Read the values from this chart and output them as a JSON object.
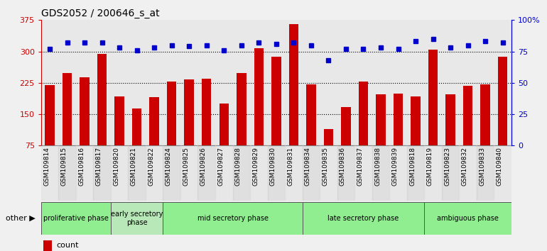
{
  "title": "GDS2052 / 200646_s_at",
  "samples": [
    "GSM109814",
    "GSM109815",
    "GSM109816",
    "GSM109817",
    "GSM109820",
    "GSM109821",
    "GSM109822",
    "GSM109824",
    "GSM109825",
    "GSM109826",
    "GSM109827",
    "GSM109828",
    "GSM109829",
    "GSM109830",
    "GSM109831",
    "GSM109834",
    "GSM109835",
    "GSM109836",
    "GSM109837",
    "GSM109838",
    "GSM109839",
    "GSM109818",
    "GSM109819",
    "GSM109823",
    "GSM109832",
    "GSM109833",
    "GSM109840"
  ],
  "counts": [
    220,
    248,
    238,
    295,
    193,
    163,
    191,
    228,
    233,
    235,
    176,
    248,
    307,
    287,
    365,
    222,
    115,
    167,
    228,
    197,
    199,
    193,
    305,
    197,
    218,
    222,
    287
  ],
  "percentile": [
    77,
    82,
    82,
    82,
    78,
    76,
    78,
    80,
    79,
    80,
    76,
    80,
    82,
    81,
    82,
    80,
    68,
    77,
    77,
    78,
    77,
    83,
    85,
    78,
    80,
    83,
    82
  ],
  "phases": [
    {
      "label": "proliferative phase",
      "color": "#90EE90",
      "start": 0,
      "end": 3
    },
    {
      "label": "early secretory\nphase",
      "color": "#b8e8b8",
      "start": 4,
      "end": 6
    },
    {
      "label": "mid secretory phase",
      "color": "#90EE90",
      "start": 7,
      "end": 14
    },
    {
      "label": "late secretory phase",
      "color": "#90EE90",
      "start": 15,
      "end": 21
    },
    {
      "label": "ambiguous phase",
      "color": "#90EE90",
      "start": 22,
      "end": 26
    }
  ],
  "bar_color": "#cc0000",
  "dot_color": "#0000cc",
  "ylim_left": [
    75,
    375
  ],
  "ylim_right": [
    0,
    100
  ],
  "yticks_left": [
    75,
    150,
    225,
    300,
    375
  ],
  "yticks_right": [
    0,
    25,
    50,
    75,
    100
  ],
  "hlines": [
    150,
    225,
    300
  ],
  "plot_bg": "#e8e8e8",
  "fig_bg": "#f0f0f0"
}
